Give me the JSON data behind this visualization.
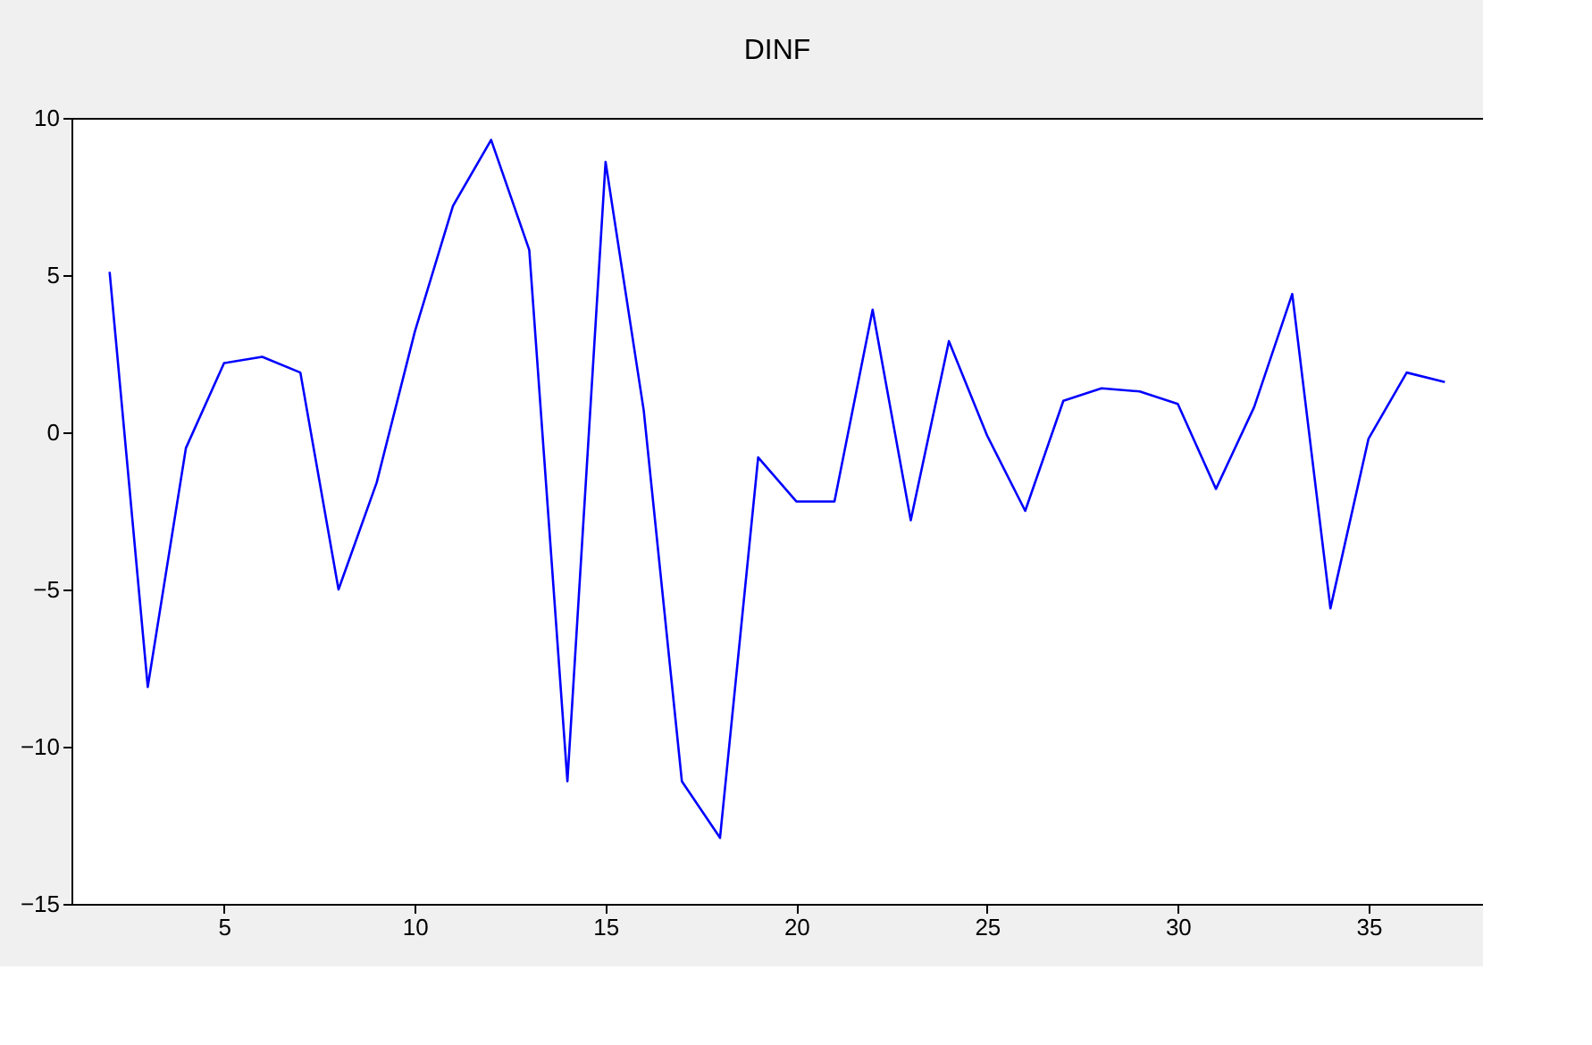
{
  "chart_data": {
    "type": "line",
    "title": "DINF",
    "x": [
      2,
      3,
      4,
      5,
      6,
      7,
      8,
      9,
      10,
      11,
      12,
      13,
      14,
      15,
      16,
      17,
      18,
      19,
      20,
      21,
      22,
      23,
      24,
      25,
      26,
      27,
      28,
      29,
      30,
      31,
      32,
      33,
      34,
      35,
      36,
      37
    ],
    "series": [
      {
        "color": "#0000ff",
        "values": [
          5.1,
          -8.1,
          -0.5,
          2.2,
          2.4,
          1.9,
          -5.0,
          -1.6,
          3.2,
          7.2,
          9.3,
          5.8,
          -11.1,
          8.6,
          0.7,
          -11.1,
          -12.9,
          -0.8,
          -2.2,
          -2.2,
          3.9,
          -2.8,
          2.9,
          -0.1,
          -2.5,
          1.0,
          1.4,
          1.3,
          0.9,
          -1.8,
          0.8,
          4.4,
          -5.6,
          -0.2,
          1.9,
          1.6
        ]
      }
    ],
    "xlim": [
      1,
      38
    ],
    "xticks": [
      5,
      10,
      15,
      20,
      25,
      30,
      35
    ],
    "ylim": [
      -15,
      10
    ],
    "yticks": [
      -15,
      -10,
      -5,
      0,
      5,
      10
    ],
    "grid": false,
    "marker": "none",
    "line_style": "solid"
  }
}
